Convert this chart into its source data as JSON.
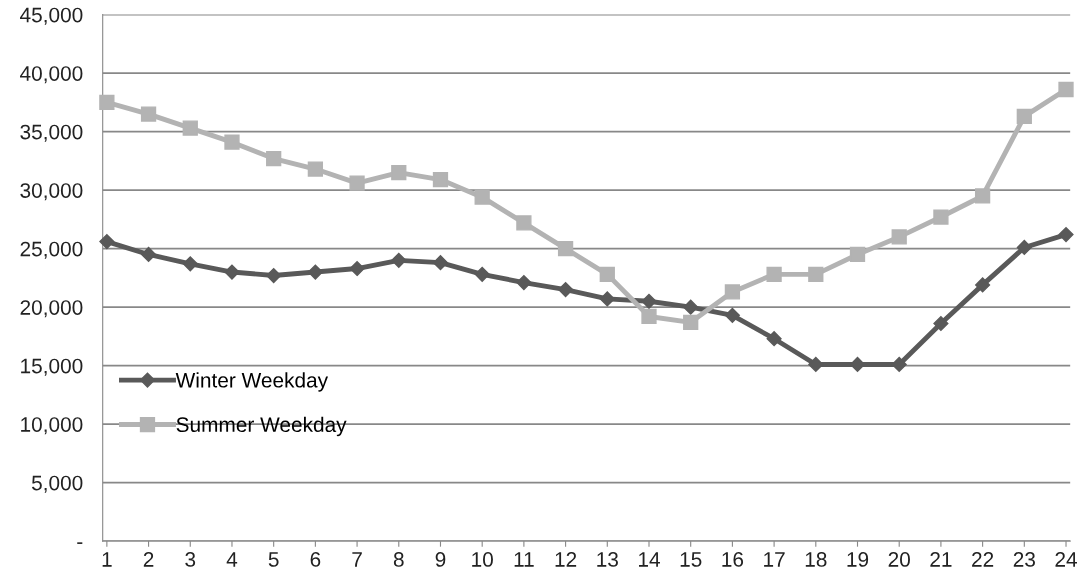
{
  "chart_data": {
    "type": "line",
    "categories": [
      "1",
      "2",
      "3",
      "4",
      "5",
      "6",
      "7",
      "8",
      "9",
      "10",
      "11",
      "12",
      "13",
      "14",
      "15",
      "16",
      "17",
      "18",
      "19",
      "20",
      "21",
      "22",
      "23",
      "24"
    ],
    "series": [
      {
        "name": "Winter Weekday",
        "color": "#595959",
        "marker": "diamond",
        "values": [
          25600,
          24500,
          23700,
          23000,
          22700,
          23000,
          23300,
          24000,
          23800,
          22800,
          22100,
          21500,
          20700,
          20500,
          20000,
          19300,
          17300,
          15100,
          15100,
          15100,
          18600,
          21900,
          25100,
          26200
        ]
      },
      {
        "name": "Summer Weekday",
        "color": "#b3b3b3",
        "marker": "square",
        "values": [
          37500,
          36500,
          35300,
          34100,
          32700,
          31800,
          30600,
          31500,
          30900,
          29400,
          27200,
          25000,
          22800,
          19200,
          18700,
          21300,
          22800,
          22800,
          24500,
          26000,
          27700,
          29500,
          36300,
          38600
        ]
      }
    ],
    "ylim": [
      0,
      45000
    ],
    "yticks": [
      {
        "value": 0,
        "label": "-"
      },
      {
        "value": 5000,
        "label": "5,000"
      },
      {
        "value": 10000,
        "label": "10,000"
      },
      {
        "value": 15000,
        "label": "15,000"
      },
      {
        "value": 20000,
        "label": "20,000"
      },
      {
        "value": 25000,
        "label": "25,000"
      },
      {
        "value": 30000,
        "label": "30,000"
      },
      {
        "value": 35000,
        "label": "35,000"
      },
      {
        "value": 40000,
        "label": "40,000"
      },
      {
        "value": 45000,
        "label": "45,000"
      }
    ],
    "grid": "y",
    "legend": "center left",
    "line_style": "solid"
  }
}
